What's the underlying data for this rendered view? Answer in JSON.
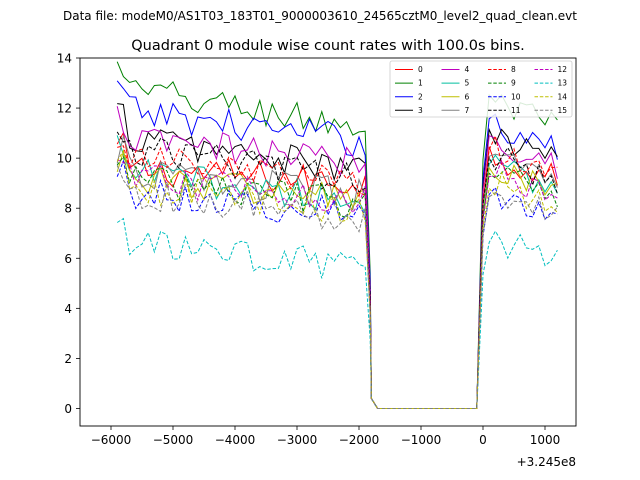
{
  "figure": {
    "suptitle": "Data file: modeM0/AS1T03_183T01_9000003610_24565cztM0_level2_quad_clean.evt",
    "title": "Quadrant 0 module wise count rates with 100.0s bins."
  },
  "chart_data": {
    "type": "line",
    "title": "Quadrant 0 module wise count rates with 100.0s bins.",
    "xlabel": "",
    "ylabel": "",
    "x_offset_label": "+3.245e8",
    "x_offset": 324500000,
    "xlim": [
      -6500,
      1500
    ],
    "ylim": [
      -0.7,
      14.0
    ],
    "xticks": [
      -6000,
      -5000,
      -4000,
      -3000,
      -2000,
      -1000,
      0,
      1000
    ],
    "xtick_labels": [
      "−6000",
      "−5000",
      "−4000",
      "−3000",
      "−2000",
      "−1000",
      "0",
      "1000"
    ],
    "yticks": [
      0,
      2,
      4,
      6,
      8,
      10,
      12,
      14
    ],
    "ytick_labels": [
      "0",
      "2",
      "4",
      "6",
      "8",
      "10",
      "12",
      "14"
    ],
    "grid": false,
    "legend_position": "top-right",
    "legend_columns": 4,
    "data_start": -5900,
    "bin_width": 100,
    "gap_start": -1800,
    "gap_end": -100,
    "gap_edge_value": 0.4,
    "gap_floor_value": 0.0,
    "series": [
      {
        "name": "0",
        "color": "#ff0000",
        "dashed": false,
        "pre_mean": 9.3,
        "pre_slope": -0.6,
        "post_mean": 9.6
      },
      {
        "name": "1",
        "color": "#008000",
        "dashed": false,
        "pre_mean": 12.0,
        "pre_slope": -1.6,
        "post_mean": 11.7
      },
      {
        "name": "2",
        "color": "#0000ff",
        "dashed": false,
        "pre_mean": 11.3,
        "pre_slope": -1.3,
        "post_mean": 10.8
      },
      {
        "name": "3",
        "color": "#000000",
        "dashed": false,
        "pre_mean": 10.2,
        "pre_slope": -1.5,
        "post_mean": 10.4
      },
      {
        "name": "4",
        "color": "#bf00bf",
        "dashed": false,
        "pre_mean": 10.3,
        "pre_slope": -0.9,
        "post_mean": 10.2
      },
      {
        "name": "5",
        "color": "#00bf9f",
        "dashed": false,
        "pre_mean": 8.9,
        "pre_slope": -1.2,
        "post_mean": 9.1
      },
      {
        "name": "6",
        "color": "#bfbf00",
        "dashed": false,
        "pre_mean": 8.8,
        "pre_slope": -0.9,
        "post_mean": 9.0
      },
      {
        "name": "7",
        "color": "#808080",
        "dashed": false,
        "pre_mean": 9.0,
        "pre_slope": -1.0,
        "post_mean": 9.5
      },
      {
        "name": "8",
        "color": "#ff0000",
        "dashed": true,
        "pre_mean": 9.5,
        "pre_slope": -1.1,
        "post_mean": 9.8
      },
      {
        "name": "9",
        "color": "#008000",
        "dashed": true,
        "pre_mean": 8.7,
        "pre_slope": -1.1,
        "post_mean": 8.9
      },
      {
        "name": "10",
        "color": "#0000ff",
        "dashed": true,
        "pre_mean": 8.2,
        "pre_slope": -1.0,
        "post_mean": 8.1
      },
      {
        "name": "11",
        "color": "#000000",
        "dashed": true,
        "pre_mean": 9.8,
        "pre_slope": -1.2,
        "post_mean": 9.6
      },
      {
        "name": "12",
        "color": "#bf00bf",
        "dashed": true,
        "pre_mean": 8.8,
        "pre_slope": -0.8,
        "post_mean": 8.9
      },
      {
        "name": "13",
        "color": "#00bfbf",
        "dashed": true,
        "pre_mean": 6.1,
        "pre_slope": -1.0,
        "post_mean": 6.3
      },
      {
        "name": "14",
        "color": "#bfbf00",
        "dashed": true,
        "pre_mean": 8.4,
        "pre_slope": -1.1,
        "post_mean": 8.5
      },
      {
        "name": "15",
        "color": "#808080",
        "dashed": true,
        "pre_mean": 8.1,
        "pre_slope": -1.2,
        "post_mean": 8.2
      }
    ]
  }
}
